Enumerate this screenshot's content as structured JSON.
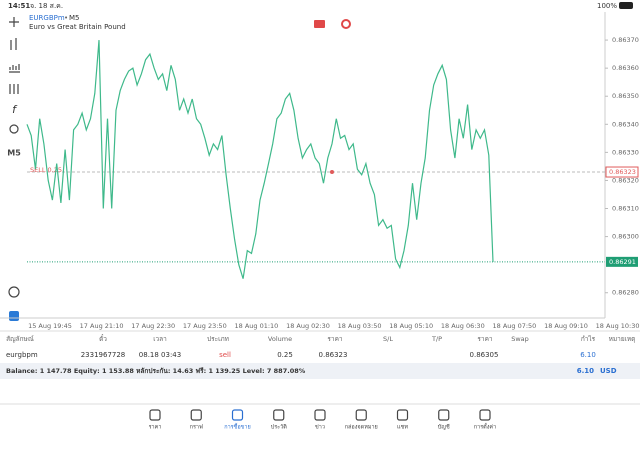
{
  "status_bar": {
    "time": "14:51",
    "date": "จ. 18 ส.ค.",
    "battery": "100%"
  },
  "chart_data": {
    "type": "line",
    "title": "EURGBPm",
    "timeframe": "M5",
    "subtitle": "Euro vs Great Britain Pound",
    "color": "#3fb98b",
    "xtick_labels": [
      "15 Aug 19:45",
      "17 Aug 21:10",
      "17 Aug 22:30",
      "17 Aug 23:50",
      "18 Aug 01:10",
      "18 Aug 02:30",
      "18 Aug 03:50",
      "18 Aug 05:10",
      "18 Aug 06:30",
      "18 Aug 07:50",
      "18 Aug 09:10",
      "18 Aug 10:30"
    ],
    "values": [
      0.8634,
      0.86336,
      0.86324,
      0.86342,
      0.86333,
      0.8632,
      0.86313,
      0.86326,
      0.86312,
      0.86331,
      0.86313,
      0.86338,
      0.8634,
      0.86344,
      0.86338,
      0.86342,
      0.86351,
      0.8637,
      0.8631,
      0.86342,
      0.8631,
      0.86345,
      0.86352,
      0.86356,
      0.86359,
      0.8636,
      0.86354,
      0.86358,
      0.86363,
      0.86365,
      0.8636,
      0.86356,
      0.86358,
      0.86352,
      0.86361,
      0.86356,
      0.86345,
      0.86349,
      0.86344,
      0.86349,
      0.86342,
      0.8634,
      0.86335,
      0.86329,
      0.86333,
      0.86331,
      0.86336,
      0.86322,
      0.8631,
      0.86299,
      0.8629,
      0.86285,
      0.86295,
      0.86294,
      0.86301,
      0.86313,
      0.86319,
      0.86326,
      0.86333,
      0.86342,
      0.86344,
      0.86349,
      0.86351,
      0.86345,
      0.86335,
      0.86328,
      0.86331,
      0.86333,
      0.86328,
      0.86326,
      0.86319,
      0.86328,
      0.86333,
      0.86342,
      0.86335,
      0.86336,
      0.86331,
      0.86333,
      0.86324,
      0.86322,
      0.86326,
      0.86319,
      0.86315,
      0.86304,
      0.86306,
      0.86303,
      0.86304,
      0.86292,
      0.86289,
      0.86295,
      0.86304,
      0.86319,
      0.86306,
      0.86319,
      0.86328,
      0.86345,
      0.86354,
      0.86358,
      0.86361,
      0.86356,
      0.86338,
      0.86328,
      0.86342,
      0.86335,
      0.86347,
      0.86331,
      0.86338,
      0.86335,
      0.86338,
      0.86329,
      0.86291
    ],
    "ylim": [
      0.86271,
      0.8638
    ],
    "yticks": [
      {
        "value": 0.8628,
        "label": "0.86280"
      },
      {
        "value": 0.863,
        "label": "0.86300"
      },
      {
        "value": 0.8631,
        "label": "0.86310"
      },
      {
        "value": 0.8632,
        "label": "0.86320"
      },
      {
        "value": 0.8633,
        "label": "0.86330"
      },
      {
        "value": 0.8634,
        "label": "0.86340"
      },
      {
        "value": 0.8635,
        "label": "0.86350"
      },
      {
        "value": 0.8636,
        "label": "0.86360"
      },
      {
        "value": 0.8637,
        "label": "0.86370"
      }
    ],
    "order_line": {
      "label": "SELL 0.25",
      "price": 0.86323,
      "color": "#e05a5a"
    },
    "bid": 0.86291,
    "bid_color": "#1f9e74"
  },
  "positions": {
    "headers": [
      "สัญลักษณ์",
      "ตั๋ว",
      "เวลา",
      "ประเภท",
      "Volume",
      "ราคา",
      "S/L",
      "T/P",
      "ราคา",
      "Swap",
      "กำไร",
      "หมายเหตุ"
    ],
    "row": {
      "symbol": "eurgbpm",
      "ticket": "2331967728",
      "time": "08.18 03:43",
      "type": "sell",
      "volume": "0.25",
      "open_price": "0.86323",
      "price": "0.86305",
      "profit": "6.10"
    }
  },
  "balance": {
    "text": "Balance: 1 147.78 Equity: 1 153.88 หลักประกัน: 14.63 ฟรี: 1 139.25 Level: 7 887.08%",
    "profit": "6.10",
    "currency": "USD"
  },
  "tabs": [
    "ราคา",
    "กราฟ",
    "การซื้อขาย",
    "ประวัติ",
    "ข่าว",
    "กล่องจดหมาย",
    "แชท",
    "บัญชี",
    "การตั้งค่า"
  ]
}
